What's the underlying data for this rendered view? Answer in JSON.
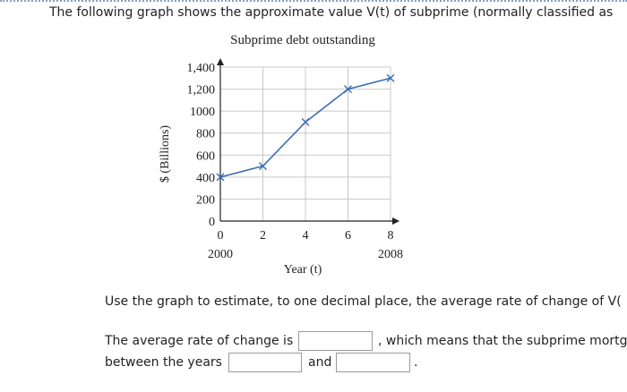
{
  "question": {
    "intro": "The following graph shows the approximate value V(t) of subprime (normally classified as",
    "instruction": "Use the graph to estimate, to one decimal place, the average rate of change of V(",
    "answer_line_1_before": "The average rate of change is",
    "answer_line_1_after": ", which means that the subprime mortg",
    "answer_line_2_before": "between the years",
    "answer_line_2_middle": "and",
    "answer_line_2_after": "."
  },
  "chart_data": {
    "type": "line",
    "title": "Subprime debt outstanding",
    "x_label": "Year (t)",
    "y_label": "$ (Billions)",
    "x": [
      0,
      2,
      4,
      6,
      8
    ],
    "series": [
      {
        "name": "V(t)",
        "color": "#3b6db3",
        "values": [
          400,
          500,
          900,
          1200,
          1300
        ]
      }
    ],
    "xlim": [
      0,
      8
    ],
    "ylim": [
      0,
      1400
    ],
    "xticks": [
      0,
      2,
      4,
      6,
      8
    ],
    "x_year_labels": [
      {
        "value": 0,
        "label": "2000"
      },
      {
        "value": 8,
        "label": "2008"
      }
    ],
    "yticks": [
      0,
      200,
      400,
      600,
      800,
      1000,
      {
        "value": 1200,
        "label": "1,200"
      },
      {
        "value": 1400,
        "label": "1,400"
      }
    ],
    "grid": true
  }
}
